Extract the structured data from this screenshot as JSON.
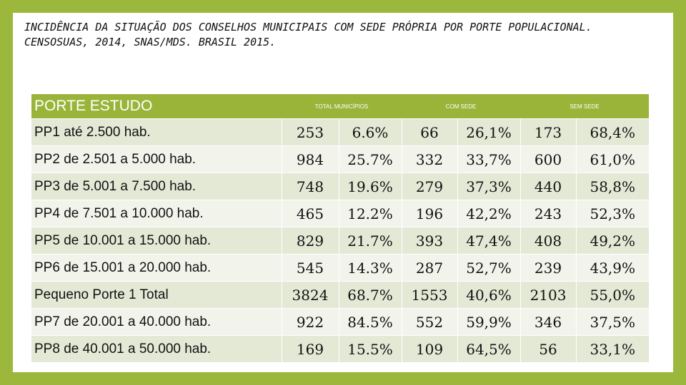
{
  "title": "INCIDÊNCIA DA SITUAÇÃO DOS CONSELHOS MUNICIPAIS  COM SEDE PRÓPRIA POR PORTE POPULACIONAL. CENSOSUAS, 2014, SNAS/MDS. BRASIL 2015.",
  "header": {
    "porte": "PORTE ESTUDO",
    "total": "TOTAL MUNICÍPIOS",
    "com_sede": "COM SEDE",
    "sem_sede": "SEM SEDE"
  },
  "rows": [
    {
      "label": "PP1 até 2.500 hab.",
      "total": "253",
      "pct": "6.6%",
      "com": "66",
      "com_pct": "26,1%",
      "sem": "173",
      "sem_pct": "68,4%"
    },
    {
      "label": "PP2 de 2.501 a 5.000 hab.",
      "total": "984",
      "pct": "25.7%",
      "com": "332",
      "com_pct": "33,7%",
      "sem": "600",
      "sem_pct": "61,0%"
    },
    {
      "label": "PP3 de 5.001 a 7.500 hab.",
      "total": "748",
      "pct": "19.6%",
      "com": "279",
      "com_pct": "37,3%",
      "sem": "440",
      "sem_pct": "58,8%"
    },
    {
      "label": "PP4 de 7.501 a 10.000 hab.",
      "total": "465",
      "pct": "12.2%",
      "com": "196",
      "com_pct": "42,2%",
      "sem": "243",
      "sem_pct": "52,3%"
    },
    {
      "label": "PP5 de 10.001 a 15.000 hab.",
      "total": "829",
      "pct": "21.7%",
      "com": "393",
      "com_pct": "47,4%",
      "sem": "408",
      "sem_pct": "49,2%"
    },
    {
      "label": "PP6 de 15.001 a 20.000 hab.",
      "total": "545",
      "pct": "14.3%",
      "com": "287",
      "com_pct": "52,7%",
      "sem": "239",
      "sem_pct": "43,9%"
    },
    {
      "label": "Pequeno Porte 1 Total",
      "total": "3824",
      "pct": "68.7%",
      "com": "1553",
      "com_pct": "40,6%",
      "sem": "2103",
      "sem_pct": "55,0%"
    },
    {
      "label": "PP7 de 20.001 a 40.000 hab.",
      "total": "922",
      "pct": "84.5%",
      "com": "552",
      "com_pct": "59,9%",
      "sem": "346",
      "sem_pct": "37,5%"
    },
    {
      "label": "PP8 de 40.001 a 50.000 hab.",
      "total": "169",
      "pct": "15.5%",
      "com": "109",
      "com_pct": "64,5%",
      "sem": "56",
      "sem_pct": "33,1%"
    }
  ],
  "colors": {
    "frame": "#9cb83c",
    "header": "#9ab43a",
    "row_odd": "#e4e9d6",
    "row_even": "#f2f4ec"
  }
}
